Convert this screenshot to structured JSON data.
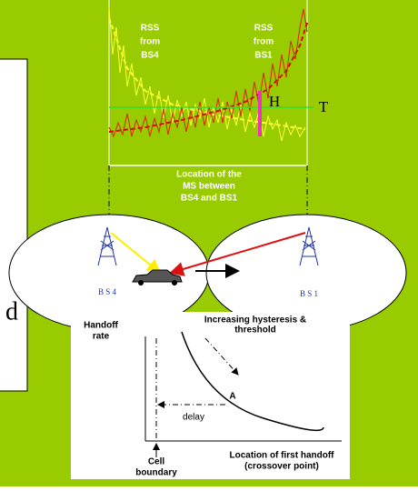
{
  "left_panel": {
    "text": "d"
  },
  "rss_plot": {
    "label_bs4": [
      "RSS",
      "from",
      "BS4"
    ],
    "label_bs1": [
      "RSS",
      "from",
      "BS1"
    ],
    "hysteresis": "H",
    "threshold": "T",
    "location_label": [
      "Location of the",
      "MS between",
      "BS4 and BS1"
    ]
  },
  "cells": {
    "left_station": "B S 4",
    "right_station": "B S 1"
  },
  "graph": {
    "y_axis": [
      "Handoff",
      "rate"
    ],
    "curve_label": [
      "Increasing hysteresis &",
      "threshold"
    ],
    "point": "A",
    "delay": "delay",
    "x_axis": [
      "Location of first handoff",
      "(crossover point)"
    ],
    "boundary": [
      "Cell",
      "boundary"
    ]
  }
}
